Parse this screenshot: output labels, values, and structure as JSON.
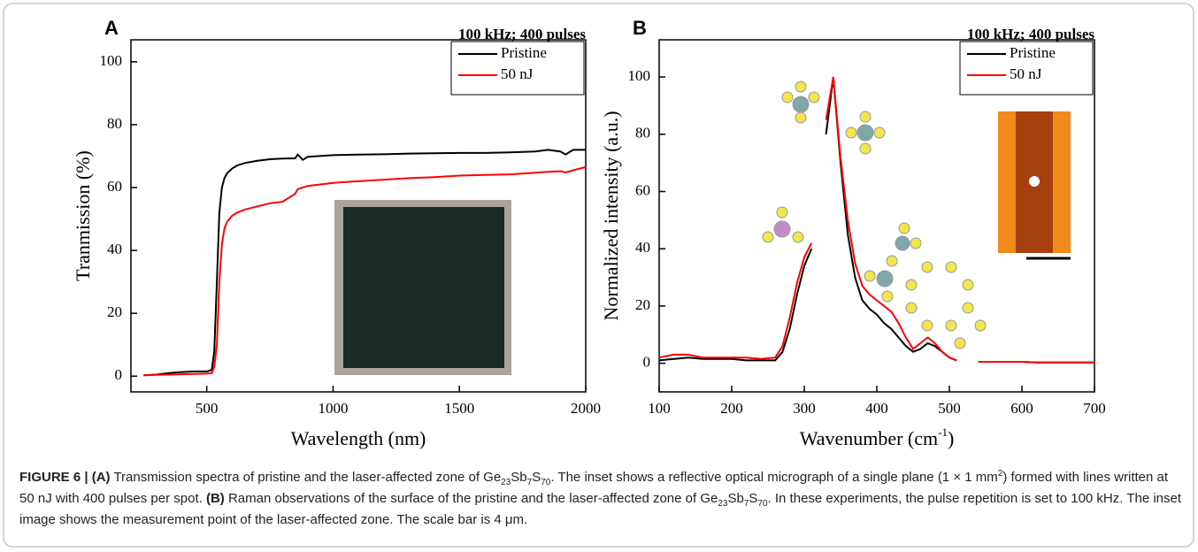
{
  "chart_data": [
    {
      "type": "line",
      "panel_label": "A",
      "annotation": "100 kHz; 400 pulses",
      "xlabel": "Wavelength (nm)",
      "ylabel": "Tranmission (%)",
      "x": [
        250,
        300,
        350,
        400,
        450,
        500,
        520,
        530,
        540,
        550,
        560,
        570,
        580,
        600,
        620,
        650,
        700,
        750,
        800,
        850,
        860,
        880,
        900,
        1000,
        1100,
        1200,
        1300,
        1400,
        1500,
        1600,
        1700,
        1800,
        1850,
        1900,
        1920,
        1950,
        2000
      ],
      "series": [
        {
          "name": "Pristine",
          "color": "#000000",
          "values": [
            0.3,
            0.5,
            1,
            1.3,
            1.5,
            1.5,
            2,
            8,
            30,
            52,
            60,
            63,
            64.5,
            66,
            67,
            67.8,
            68.5,
            69,
            69.2,
            69.3,
            70.5,
            68.8,
            69.8,
            70.3,
            70.5,
            70.6,
            70.8,
            70.9,
            71,
            71,
            71.2,
            71.5,
            72,
            71.5,
            70.5,
            72,
            72
          ]
        },
        {
          "name": "50 nJ",
          "color": "#ff0000",
          "values": [
            0.3,
            0.4,
            0.5,
            0.6,
            0.7,
            0.8,
            1,
            3,
            10,
            30,
            42,
            47,
            49,
            51,
            52,
            53,
            54,
            55,
            55.5,
            58,
            59.5,
            60,
            60.5,
            61.5,
            62,
            62.5,
            63,
            63.3,
            63.8,
            64,
            64.2,
            64.7,
            65,
            65.2,
            64.8,
            65.5,
            66.5
          ]
        }
      ],
      "xlim": [
        200,
        2000
      ],
      "xticks": [
        500,
        1000,
        1500,
        2000
      ],
      "ylim": [
        -5,
        107
      ],
      "yticks": [
        0,
        20,
        40,
        60,
        80,
        100
      ],
      "legend": "top-right"
    },
    {
      "type": "line",
      "panel_label": "B",
      "annotation": "100 kHz; 400 pulses",
      "xlabel": [
        {
          "text": "Wavenumber (cm"
        },
        {
          "text": "-1",
          "style": "sup"
        },
        {
          "text": ")"
        }
      ],
      "ylabel": "Normalized intensity (a.u.)",
      "x": [
        100,
        120,
        140,
        160,
        180,
        200,
        220,
        240,
        260,
        270,
        280,
        290,
        300,
        310,
        320,
        330,
        340,
        350,
        360,
        370,
        380,
        390,
        400,
        410,
        420,
        430,
        440,
        450,
        460,
        470,
        480,
        490,
        500,
        510,
        520,
        540,
        560,
        580,
        600,
        620,
        640,
        660,
        680,
        700
      ],
      "series": [
        {
          "name": "Pristine",
          "color": "#000000",
          "values": [
            1,
            1.5,
            2,
            1.5,
            1.5,
            1.5,
            1,
            1,
            1,
            4,
            12,
            24,
            34,
            40,
            null,
            80,
            100,
            70,
            45,
            30,
            22,
            19,
            17,
            14,
            12,
            9,
            6,
            4,
            5,
            7,
            6,
            4,
            2,
            1,
            null,
            0.5,
            0.5,
            0.5,
            0.5,
            0.3,
            0.3,
            0.3,
            0.3,
            0.3
          ]
        },
        {
          "name": "50 nJ",
          "color": "#ff0000",
          "values": [
            2,
            3,
            3,
            2,
            2,
            2,
            2,
            1.5,
            2,
            6,
            16,
            28,
            37,
            42,
            null,
            85,
            100,
            72,
            50,
            35,
            27,
            24,
            22,
            20,
            18,
            14,
            9,
            5,
            7,
            9,
            7,
            4,
            2,
            1,
            null,
            0.5,
            0.5,
            0.5,
            0.5,
            0.3,
            0.3,
            0.3,
            0.3,
            0.3
          ]
        }
      ],
      "xlim": [
        100,
        700
      ],
      "xticks": [
        100,
        200,
        300,
        400,
        500,
        600,
        700
      ],
      "ylim": [
        -10,
        113
      ],
      "yticks": [
        0,
        20,
        40,
        60,
        80,
        100
      ],
      "legend": "top-right"
    }
  ],
  "caption": {
    "runs": [
      {
        "text": "FIGURE 6 | (A)",
        "style": "bold"
      },
      {
        "text": " Transmission spectra of pristine and the laser-affected zone of Ge"
      },
      {
        "text": "23",
        "style": "sub"
      },
      {
        "text": "Sb"
      },
      {
        "text": "7",
        "style": "sub"
      },
      {
        "text": "S"
      },
      {
        "text": "70",
        "style": "sub"
      },
      {
        "text": ". The inset shows a reflective optical micrograph of a single plane (1 × 1 mm"
      },
      {
        "text": "2",
        "style": "sup"
      },
      {
        "text": ") formed with lines written at 50 nJ with 400 pulses per spot. "
      },
      {
        "text": "(B)",
        "style": "bold"
      },
      {
        "text": " Raman observations of the surface of the pristine and the laser-affected zone of Ge"
      },
      {
        "text": "23",
        "style": "sub"
      },
      {
        "text": "Sb"
      },
      {
        "text": "7",
        "style": "sub"
      },
      {
        "text": "S"
      },
      {
        "text": "70",
        "style": "sub"
      },
      {
        "text": ". In these experiments, the pulse repetition is set to 100 kHz. The inset image shows the measurement point of the laser-affected zone. The scale bar is 4 μm."
      }
    ]
  }
}
